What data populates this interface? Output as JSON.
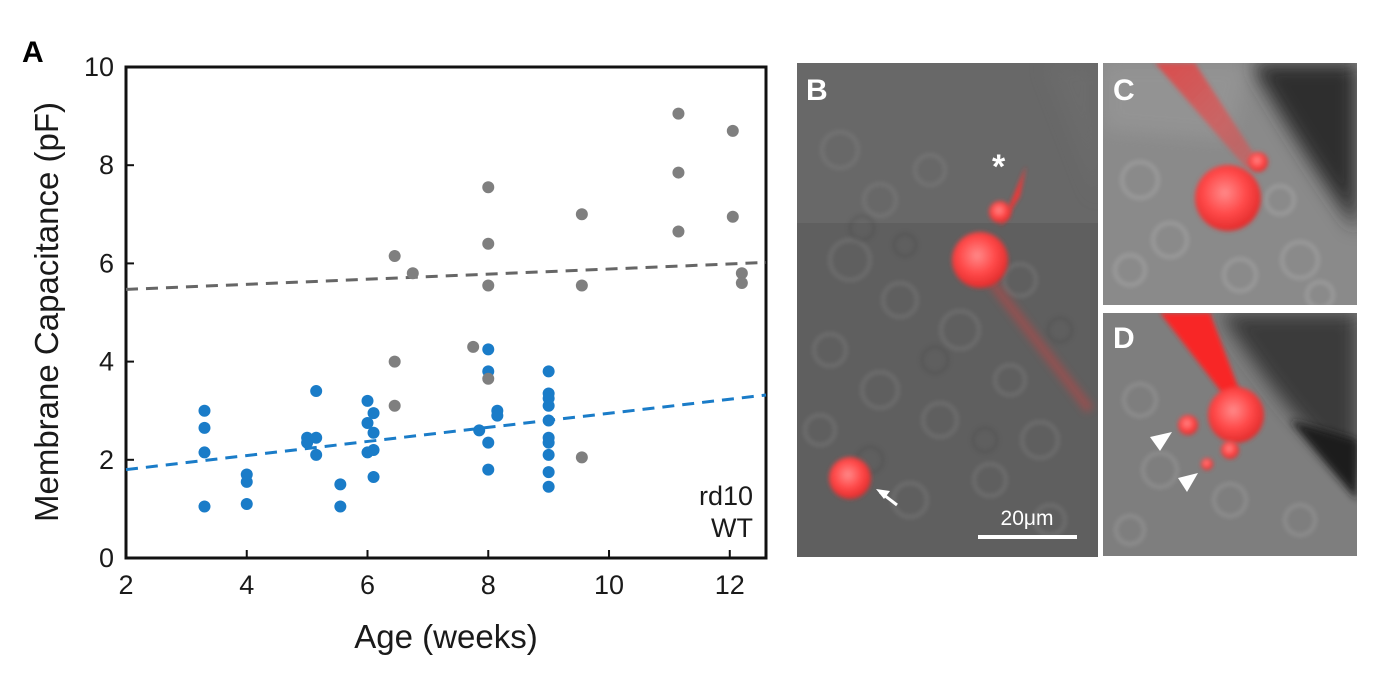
{
  "panels": {
    "a": "A",
    "b": "B",
    "c": "C",
    "d": "D"
  },
  "scale_bar": "20μm",
  "colors": {
    "rd10": "#1a7cc8",
    "wt": "#7f7f7f",
    "wt_fit": "#666666",
    "fluorescence": "#ff3b3b"
  },
  "chart_data": {
    "type": "scatter",
    "xlabel": "Age (weeks)",
    "ylabel": "Membrane Capacitance (pF)",
    "xlim": [
      2,
      12.6
    ],
    "ylim": [
      0,
      10
    ],
    "xticks": [
      2,
      4,
      6,
      8,
      10,
      12
    ],
    "yticks": [
      0,
      2,
      4,
      6,
      8,
      10
    ],
    "grid": false,
    "legend_position": "bottom-right",
    "series": [
      {
        "name": "rd10",
        "color": "#1a7cc8",
        "points": [
          [
            3.3,
            3.0
          ],
          [
            3.3,
            2.65
          ],
          [
            3.3,
            2.15
          ],
          [
            3.3,
            1.05
          ],
          [
            4.0,
            1.7
          ],
          [
            4.0,
            1.55
          ],
          [
            4.0,
            1.1
          ],
          [
            5.0,
            2.45
          ],
          [
            5.0,
            2.35
          ],
          [
            5.15,
            2.45
          ],
          [
            5.15,
            3.4
          ],
          [
            5.15,
            2.1
          ],
          [
            5.55,
            1.5
          ],
          [
            5.55,
            1.05
          ],
          [
            6.0,
            3.2
          ],
          [
            6.0,
            2.75
          ],
          [
            6.0,
            2.15
          ],
          [
            6.1,
            2.95
          ],
          [
            6.1,
            2.55
          ],
          [
            6.1,
            2.2
          ],
          [
            6.1,
            1.65
          ],
          [
            7.85,
            2.6
          ],
          [
            8.0,
            4.25
          ],
          [
            8.0,
            3.8
          ],
          [
            8.0,
            2.35
          ],
          [
            8.0,
            1.8
          ],
          [
            8.15,
            3.0
          ],
          [
            8.15,
            2.9
          ],
          [
            9.0,
            3.8
          ],
          [
            9.0,
            3.35
          ],
          [
            9.0,
            3.25
          ],
          [
            9.0,
            3.1
          ],
          [
            9.0,
            2.8
          ],
          [
            9.0,
            2.45
          ],
          [
            9.0,
            2.35
          ],
          [
            9.0,
            2.1
          ],
          [
            9.0,
            1.75
          ],
          [
            9.0,
            1.45
          ]
        ],
        "fit": [
          [
            2,
            1.8
          ],
          [
            12.6,
            3.32
          ]
        ]
      },
      {
        "name": "WT",
        "color": "#7f7f7f",
        "points": [
          [
            6.45,
            6.15
          ],
          [
            6.45,
            4.0
          ],
          [
            6.45,
            3.1
          ],
          [
            6.75,
            5.8
          ],
          [
            7.75,
            4.3
          ],
          [
            8.0,
            7.55
          ],
          [
            8.0,
            6.4
          ],
          [
            8.0,
            5.55
          ],
          [
            8.0,
            3.65
          ],
          [
            9.55,
            7.0
          ],
          [
            9.55,
            5.55
          ],
          [
            9.55,
            2.05
          ],
          [
            11.15,
            9.05
          ],
          [
            11.15,
            7.85
          ],
          [
            11.15,
            6.65
          ],
          [
            12.05,
            8.7
          ],
          [
            12.05,
            6.95
          ],
          [
            12.2,
            5.8
          ],
          [
            12.2,
            5.6
          ]
        ],
        "fit": [
          [
            2,
            5.47
          ],
          [
            12.6,
            6.02
          ]
        ]
      }
    ]
  }
}
